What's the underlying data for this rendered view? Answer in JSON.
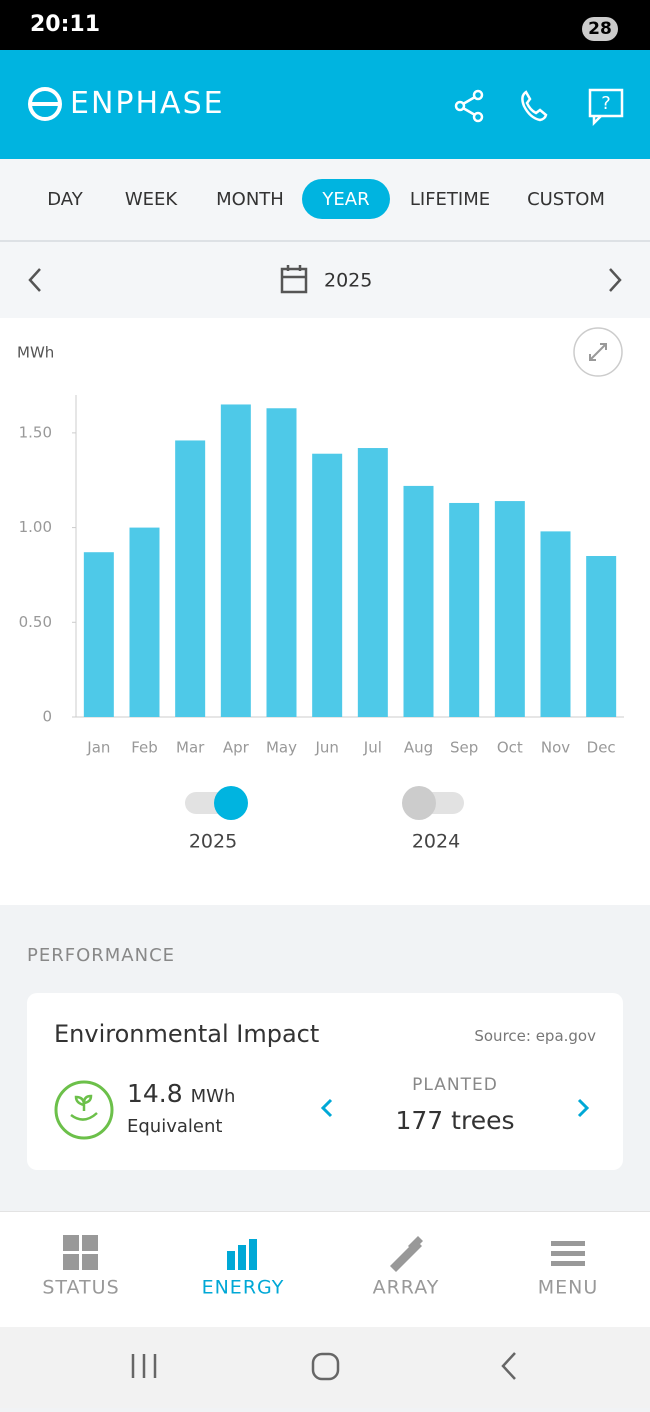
{
  "status_bar": {
    "time": "20:11",
    "battery": "28"
  },
  "header": {
    "brand": "ENPHASE"
  },
  "tabs": [
    "DAY",
    "WEEK",
    "MONTH",
    "YEAR",
    "LIFETIME",
    "CUSTOM"
  ],
  "selected_tab": 3,
  "period": "2025",
  "chart_data": {
    "type": "bar",
    "y_axis_label": "MWh",
    "categories": [
      "Jan",
      "Feb",
      "Mar",
      "Apr",
      "May",
      "Jun",
      "Jul",
      "Aug",
      "Sep",
      "Oct",
      "Nov",
      "Dec"
    ],
    "values": [
      0.87,
      1.0,
      1.46,
      1.65,
      1.63,
      1.39,
      1.42,
      1.22,
      1.13,
      1.14,
      0.98,
      0.85
    ],
    "color": "#4ec9e8",
    "ylim": [
      0,
      1.7
    ],
    "yticks": [
      0,
      {
        "value": 0.5,
        "label": "0.50"
      },
      {
        "value": 1.0,
        "label": "1.00"
      },
      {
        "value": 1.5,
        "label": "1.50"
      }
    ],
    "series_toggles": [
      {
        "name": "2025",
        "on": true
      },
      {
        "name": "2024",
        "on": false
      }
    ]
  },
  "performance": {
    "section": "PERFORMANCE",
    "title": "Environmental Impact",
    "source": "Source: epa.gov",
    "energy": "14.8",
    "unit": "MWh",
    "equivalent": "Equivalent",
    "metric_label": "PLANTED",
    "metric_value": "177 trees"
  },
  "nav": [
    "STATUS",
    "ENERGY",
    "ARRAY",
    "MENU"
  ],
  "selected_nav": 1
}
